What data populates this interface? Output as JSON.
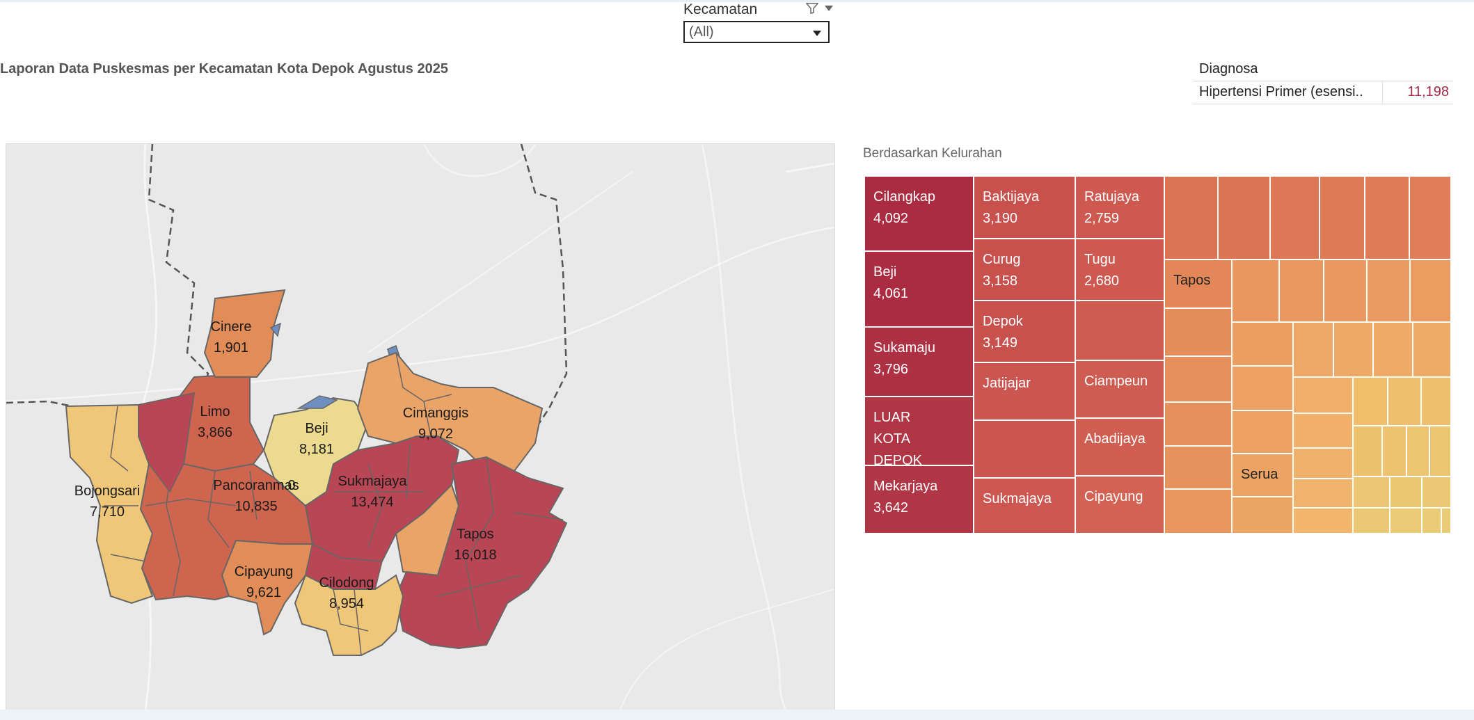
{
  "filter": {
    "title": "Kecamatan",
    "selected": "(All)",
    "funnel_icon": "funnel-icon",
    "menu_icon": "dropdown-arrow-icon"
  },
  "page_title": "Laporan Data Puskesmas per Kecamatan Kota Depok Agustus 2025",
  "legend": {
    "header": "Diagnosa",
    "label": "Hipertensi Primer (esensi..",
    "value": "11,198",
    "value_color": "#a22b48"
  },
  "map": {
    "labels": [
      {
        "name": "Cinere",
        "value": "1,901"
      },
      {
        "name": "Limo",
        "value": "3,866"
      },
      {
        "name": "Beji",
        "value": "8,181"
      },
      {
        "name": "Cimanggis",
        "value": "9,072"
      },
      {
        "name": "Bojongsari",
        "value": "7,710"
      },
      {
        "name": "Pancoranmas",
        "value": "10,835"
      },
      {
        "name": "Sukmajaya",
        "value": "13,474"
      },
      {
        "name": "Tapos",
        "value": "16,018"
      },
      {
        "name": "Cipayung",
        "value": "9,621"
      },
      {
        "name": "Cilodong",
        "value": "8,954"
      }
    ],
    "stray_label": "0",
    "colors": {
      "dark_red": "#b94654",
      "red_orange": "#d0654f",
      "orange": "#e28d58",
      "light_orange": "#eba468",
      "yellow": "#f0c778",
      "pale_yellow": "#ecdb8e",
      "water": "#6f8fc0",
      "background": "#e9e9e9"
    }
  },
  "treemap": {
    "subtitle": "Berdasarkan Kelurahan",
    "tiles": [
      {
        "name": "Cilangkap",
        "value": "4,092"
      },
      {
        "name": "Beji",
        "value": "4,061"
      },
      {
        "name": "Sukamaju",
        "value": "3,796"
      },
      {
        "name": "LUAR KOTA DEPOK",
        "value": ""
      },
      {
        "name": "Mekarjaya",
        "value": "3,642"
      },
      {
        "name": "Baktijaya",
        "value": "3,190"
      },
      {
        "name": "Curug",
        "value": "3,158"
      },
      {
        "name": "Depok",
        "value": "3,149"
      },
      {
        "name": "Jatijajar",
        "value": ""
      },
      {
        "name": "Sukmajaya",
        "value": ""
      },
      {
        "name": "Ratujaya",
        "value": "2,759"
      },
      {
        "name": "Tugu",
        "value": "2,680"
      },
      {
        "name": "Ciampeun",
        "value": ""
      },
      {
        "name": "Abadijaya",
        "value": ""
      },
      {
        "name": "Cipayung",
        "value": ""
      },
      {
        "name": "Tapos",
        "value": ""
      },
      {
        "name": "Serua",
        "value": ""
      }
    ]
  }
}
